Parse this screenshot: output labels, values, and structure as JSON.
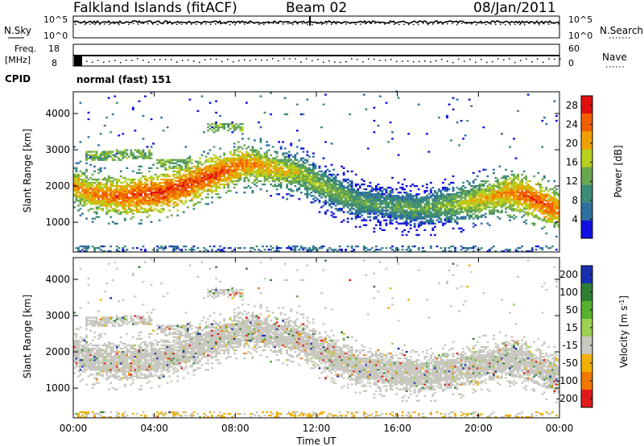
{
  "header": {
    "station": "Falkland Islands (fitACF)",
    "beam": "Beam 02",
    "date": "08/Jan/2011"
  },
  "aux_panels": {
    "nsky_label": "N.Sky",
    "nsearch_label": "N.Search",
    "freq_label": "Freq.",
    "freq_unit": "[MHz]",
    "nave_label": "Nave",
    "cpid_label": "CPID",
    "cpid_value": "normal (fast) 151",
    "noise_ticks_left": [
      "10^5",
      "10^0"
    ],
    "noise_ticks_right": [
      "10^5",
      "10^0"
    ],
    "freq_ticks": [
      "18",
      "8"
    ],
    "nave_ticks": [
      "60",
      "0"
    ]
  },
  "chart_data": [
    {
      "type": "heatmap",
      "title": "",
      "xlabel": "Time UT",
      "ylabel": "Slant Range [km]",
      "x_ticks": [
        "00:00",
        "04:00",
        "08:00",
        "12:00",
        "16:00",
        "20:00",
        "00:00"
      ],
      "xlim_hours": [
        0,
        24
      ],
      "y_ticks": [
        1000,
        2000,
        3000,
        4000
      ],
      "ylim": [
        180,
        4600
      ],
      "colorbar": {
        "label": "Power [dB]",
        "ticks": [
          4,
          8,
          12,
          16,
          20,
          24,
          28
        ],
        "range": [
          0,
          30
        ],
        "colors": [
          "#1010e0",
          "#2f6fa0",
          "#3d8c78",
          "#6aa84f",
          "#b8d020",
          "#f0a000",
          "#f06000",
          "#e01010"
        ]
      },
      "band_center_km": [
        [
          0.0,
          2000
        ],
        [
          1.0,
          1750
        ],
        [
          2.5,
          1700
        ],
        [
          4.5,
          1800
        ],
        [
          6.0,
          2100
        ],
        [
          7.5,
          2400
        ],
        [
          8.5,
          2600
        ],
        [
          9.5,
          2500
        ],
        [
          11.0,
          2350
        ],
        [
          12.5,
          1950
        ],
        [
          14.0,
          1550
        ],
        [
          15.5,
          1450
        ],
        [
          17.0,
          1350
        ],
        [
          18.5,
          1450
        ],
        [
          20.0,
          1600
        ],
        [
          21.5,
          1800
        ],
        [
          22.5,
          1700
        ],
        [
          24.0,
          1300
        ]
      ],
      "band_power_db": [
        [
          0.0,
          22
        ],
        [
          4.0,
          27
        ],
        [
          7.0,
          26
        ],
        [
          9.0,
          22
        ],
        [
          12.0,
          16
        ],
        [
          15.0,
          12
        ],
        [
          18.0,
          14
        ],
        [
          21.0,
          22
        ],
        [
          23.0,
          26
        ],
        [
          24.0,
          24
        ]
      ],
      "secondary_echo_km": [
        [
          1.5,
          2800
        ],
        [
          3.0,
          2850
        ],
        [
          5.0,
          2600
        ],
        [
          7.5,
          3600
        ]
      ]
    },
    {
      "type": "heatmap",
      "title": "",
      "xlabel": "Time UT",
      "ylabel": "Slant Range [km]",
      "x_ticks": [
        "00:00",
        "04:00",
        "08:00",
        "12:00",
        "16:00",
        "20:00",
        "00:00"
      ],
      "xlim_hours": [
        0,
        24
      ],
      "y_ticks": [
        1000,
        2000,
        3000,
        4000
      ],
      "ylim": [
        180,
        4600
      ],
      "colorbar": {
        "label": "Velocity [m s^-1]",
        "ticks": [
          200,
          100,
          50,
          15,
          -15,
          -50,
          -100,
          -200
        ],
        "range": [
          -250,
          250
        ],
        "colors": [
          "#1a2fb0",
          "#2e7d32",
          "#58b030",
          "#9bd050",
          "#c8c8c0",
          "#f0b000",
          "#f07800",
          "#e01a1a"
        ]
      },
      "dominant_velocity_ms": 0,
      "ground_scatter_color": "#c8c8c0"
    }
  ]
}
